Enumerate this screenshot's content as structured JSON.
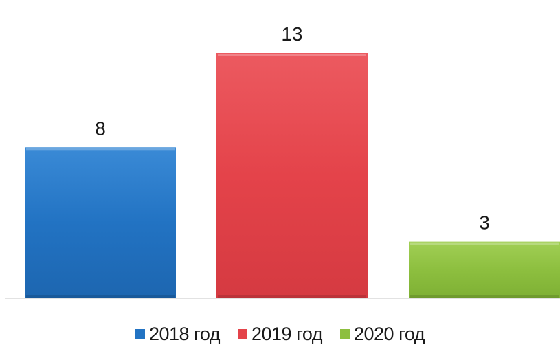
{
  "chart_data": {
    "type": "bar",
    "categories": [
      "2018 год",
      "2019 год",
      "2020 год"
    ],
    "values": [
      8,
      13,
      3
    ],
    "colors": [
      "#2273c3",
      "#e4434a",
      "#8dbf3f"
    ],
    "data_labels": [
      "8",
      "13",
      "3"
    ],
    "title": "",
    "xlabel": "",
    "ylabel": "",
    "ylim": [
      0,
      13
    ],
    "grid": false,
    "legend_position": "bottom"
  }
}
